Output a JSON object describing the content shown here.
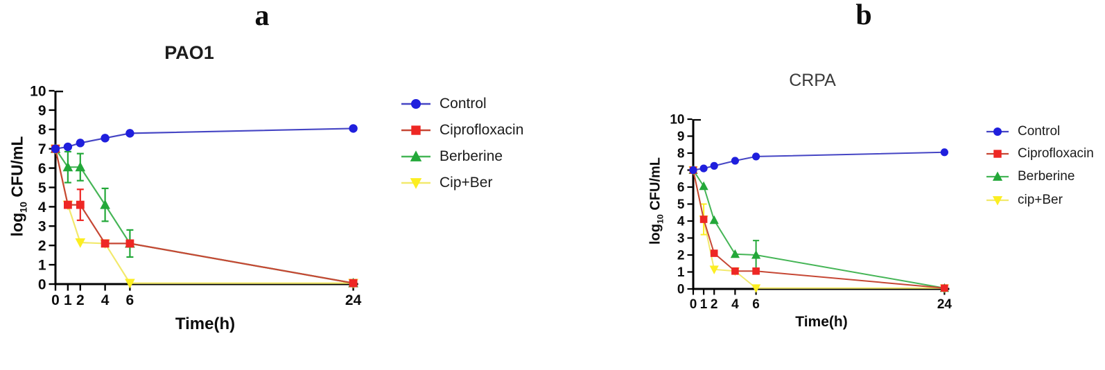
{
  "figure": {
    "background": "#ffffff",
    "panel_labels": [
      "a",
      "b"
    ]
  },
  "chart_data": [
    {
      "type": "line",
      "panel": "a",
      "title": "PAO1",
      "xlabel": "Time(h)",
      "ylabel": "log10 CFU/mL",
      "ylabel_parts": [
        "log",
        "10",
        " CFU/mL"
      ],
      "x": [
        0,
        1,
        2,
        4,
        6,
        24
      ],
      "xticks": [
        0,
        1,
        2,
        4,
        6,
        24
      ],
      "yticks": [
        0,
        1,
        2,
        3,
        4,
        5,
        6,
        7,
        8,
        9,
        10
      ],
      "xlim": [
        0,
        24
      ],
      "ylim": [
        0,
        10
      ],
      "grid": false,
      "legend_position": "right-of-plot",
      "series": [
        {
          "name": "Control",
          "marker": "circle",
          "marker_color": "#1f1fdd",
          "line_color": "#4545c4",
          "values": [
            7.0,
            7.1,
            7.3,
            7.55,
            7.8,
            8.05
          ],
          "errors": [
            0,
            0,
            0,
            0,
            0,
            0
          ]
        },
        {
          "name": "Ciprofloxacin",
          "marker": "square",
          "marker_color": "#ee2724",
          "line_color": "#c64734",
          "values": [
            7.0,
            4.1,
            4.1,
            2.1,
            2.1,
            0.05
          ],
          "errors": [
            0,
            0,
            0.8,
            0,
            0,
            0
          ]
        },
        {
          "name": "Berberine",
          "marker": "triangle-up",
          "marker_color": "#23a839",
          "line_color": "#45b556",
          "values": [
            7.0,
            6.05,
            6.05,
            4.1,
            2.1,
            0.05
          ],
          "errors": [
            0,
            0.8,
            0.7,
            0.85,
            0.7,
            0
          ]
        },
        {
          "name": "Cip+Ber",
          "marker": "triangle-down",
          "marker_color": "#fcee21",
          "line_color": "#f2e96c",
          "values": [
            7.0,
            4.1,
            2.15,
            2.1,
            0.05,
            0.05
          ],
          "errors": [
            0,
            0,
            0,
            0,
            0,
            0
          ]
        }
      ]
    },
    {
      "type": "line",
      "panel": "b",
      "title": "CRPA",
      "xlabel": "Time(h)",
      "ylabel": "log10 CFU/mL",
      "ylabel_parts": [
        "log",
        "10",
        " CFU/mL"
      ],
      "x": [
        0,
        1,
        2,
        4,
        6,
        24
      ],
      "xticks": [
        0,
        1,
        2,
        4,
        6,
        24
      ],
      "yticks": [
        0,
        1,
        2,
        3,
        4,
        5,
        6,
        7,
        8,
        9,
        10
      ],
      "xlim": [
        0,
        24
      ],
      "ylim": [
        0,
        10
      ],
      "grid": false,
      "legend_position": "right-of-plot",
      "series": [
        {
          "name": "Control",
          "marker": "circle",
          "marker_color": "#1f1fdd",
          "line_color": "#4545c4",
          "values": [
            7.0,
            7.1,
            7.25,
            7.55,
            7.8,
            8.05
          ],
          "errors": [
            0,
            0,
            0,
            0,
            0,
            0
          ]
        },
        {
          "name": "Ciprofloxacin",
          "marker": "square",
          "marker_color": "#ee2724",
          "line_color": "#c64734",
          "values": [
            7.0,
            4.1,
            2.1,
            1.05,
            1.05,
            0.05
          ],
          "errors": [
            0,
            0,
            0,
            0,
            0,
            0
          ]
        },
        {
          "name": "Berberine",
          "marker": "triangle-up",
          "marker_color": "#23a839",
          "line_color": "#45b556",
          "values": [
            7.0,
            6.05,
            4.05,
            2.05,
            2.0,
            0.05
          ],
          "errors": [
            0,
            0,
            0,
            0,
            0.85,
            0
          ]
        },
        {
          "name": "cip+Ber",
          "marker": "triangle-down",
          "marker_color": "#fcee21",
          "line_color": "#f2e96c",
          "values": [
            7.0,
            4.1,
            1.15,
            1.05,
            0.05,
            0.05
          ],
          "errors": [
            0,
            0.9,
            0,
            0,
            0,
            0
          ]
        }
      ]
    }
  ]
}
